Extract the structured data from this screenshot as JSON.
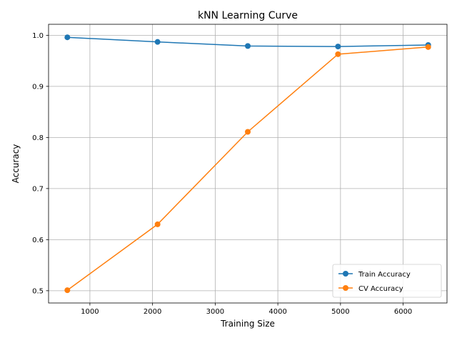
{
  "chart_data": {
    "type": "line",
    "title": "kNN Learning Curve",
    "xlabel": "Training Size",
    "ylabel": "Accuracy",
    "xlim": [
      340,
      6700
    ],
    "ylim": [
      0.476,
      1.0215
    ],
    "xticks": [
      1000,
      2000,
      3000,
      4000,
      5000,
      6000
    ],
    "xtick_labels": [
      "1000",
      "2000",
      "3000",
      "4000",
      "5000",
      "6000"
    ],
    "yticks": [
      0.5,
      0.6,
      0.7,
      0.8,
      0.9,
      1.0
    ],
    "ytick_labels": [
      "0.5",
      "0.6",
      "0.7",
      "0.8",
      "0.9",
      "1.0"
    ],
    "grid": true,
    "legend_position": "lower-right",
    "x": [
      640,
      2080,
      3520,
      4960,
      6400
    ],
    "series": [
      {
        "name": "Train Accuracy",
        "color": "#1f77b4",
        "marker": "circle",
        "values": [
          0.996,
          0.987,
          0.979,
          0.978,
          0.981
        ]
      },
      {
        "name": "CV Accuracy",
        "color": "#ff7f0e",
        "marker": "circle",
        "values": [
          0.501,
          0.63,
          0.811,
          0.963,
          0.977
        ]
      }
    ]
  }
}
